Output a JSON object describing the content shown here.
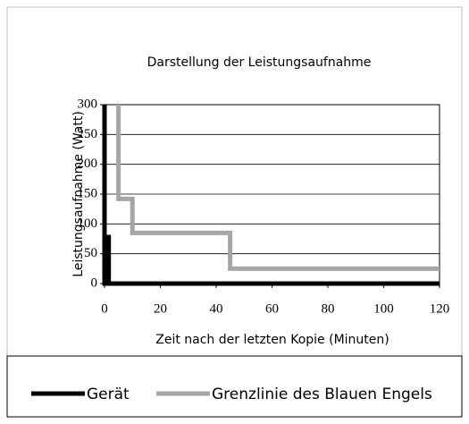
{
  "chart_data": {
    "type": "line",
    "title": "Darstellung der Leistungsaufnahme",
    "xlabel": "Zeit nach der letzten Kopie (Minuten)",
    "ylabel": "Leistungsaufnahme (Watt)",
    "xlim": [
      0,
      120
    ],
    "xticks": [
      0,
      20,
      40,
      60,
      80,
      100,
      120
    ],
    "ylim": [
      0,
      300
    ],
    "yticks": [
      0,
      50,
      100,
      150,
      200,
      250,
      300
    ],
    "grid": true,
    "legend": "bottom",
    "series": [
      {
        "name": "Gerät",
        "color": "#000000",
        "x": [
          0,
          0,
          0.5,
          0.5,
          1.5,
          1.5,
          120
        ],
        "values": [
          300,
          0,
          0,
          78,
          78,
          0,
          0
        ]
      },
      {
        "name": "Grenzlinie des Blauen Engels",
        "color": "#a6a6a6",
        "x": [
          5,
          5,
          10,
          10,
          45,
          45,
          120
        ],
        "values": [
          300,
          142,
          142,
          85,
          85,
          25,
          25
        ]
      }
    ]
  }
}
